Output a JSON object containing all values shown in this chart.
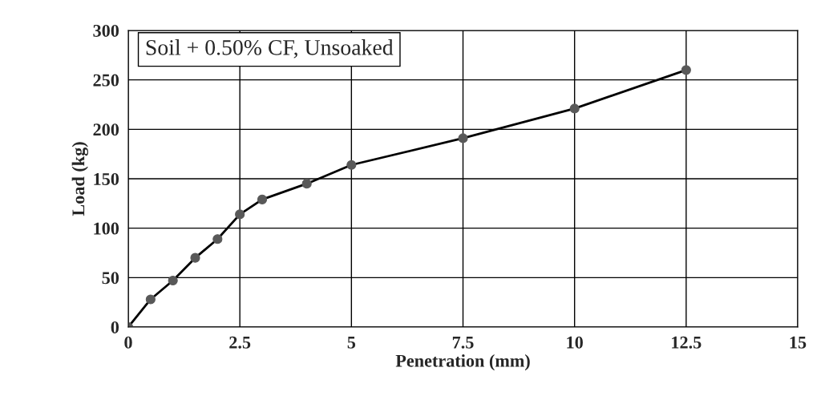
{
  "chart_data": {
    "type": "line",
    "title": "Soil + 0.50% CF, Unsoaked",
    "xlabel": "Penetration (mm)",
    "ylabel": "Load (kg)",
    "x": [
      0,
      0.5,
      1,
      1.5,
      2,
      2.5,
      3,
      4,
      5,
      7.5,
      10,
      12.5
    ],
    "series": [
      {
        "color": "#000000",
        "values": [
          0,
          28,
          47,
          70,
          89,
          114,
          129,
          145,
          164,
          191,
          221,
          260
        ]
      }
    ],
    "marker": "circle",
    "line_style": "solid",
    "grid": true,
    "xlim": [
      0,
      15
    ],
    "xticks": [
      0,
      2.5,
      5,
      7.5,
      10,
      12.5,
      15
    ],
    "ylim": [
      0,
      300
    ],
    "yticks": [
      0,
      50,
      100,
      150,
      200,
      250,
      300
    ]
  }
}
